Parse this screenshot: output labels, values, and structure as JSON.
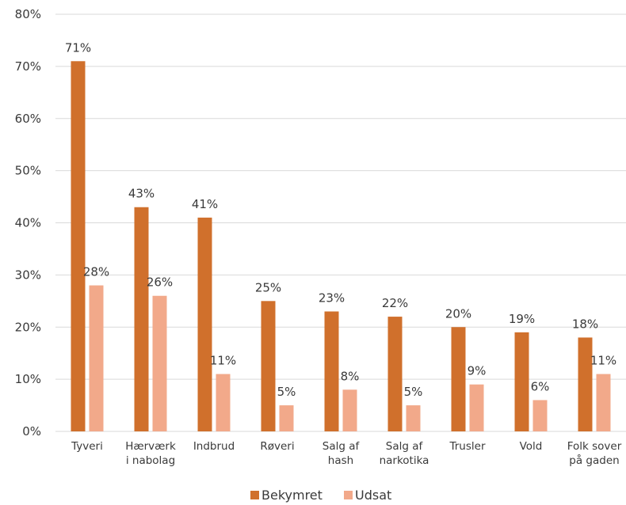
{
  "chart_data": {
    "type": "bar",
    "categories": [
      [
        "Tyveri"
      ],
      [
        "Hærværk",
        "i nabolag"
      ],
      [
        "Indbrud"
      ],
      [
        "Røveri"
      ],
      [
        "Salg af",
        "hash"
      ],
      [
        "Salg af",
        "narkotika"
      ],
      [
        "Trusler"
      ],
      [
        "Vold"
      ],
      [
        "Folk sover",
        "på gaden"
      ]
    ],
    "series": [
      {
        "name": "Bekymret",
        "color": "#D0702C",
        "values": [
          71,
          43,
          41,
          25,
          23,
          22,
          20,
          19,
          18
        ],
        "labels": [
          "71%",
          "43%",
          "41%",
          "25%",
          "23%",
          "22%",
          "20%",
          "19%",
          "18%"
        ]
      },
      {
        "name": "Udsat",
        "color": "#F2A98A",
        "values": [
          28,
          26,
          11,
          5,
          8,
          5,
          9,
          6,
          11
        ],
        "labels": [
          "28%",
          "26%",
          "11%",
          "5%",
          "8%",
          "5%",
          "9%",
          "6%",
          "11%"
        ]
      }
    ],
    "ylim": [
      0,
      80
    ],
    "yticks": [
      "0%",
      "10%",
      "20%",
      "30%",
      "40%",
      "50%",
      "60%",
      "70%",
      "80%"
    ],
    "grid": true,
    "legend_position": "bottom",
    "title": "",
    "xlabel": "",
    "ylabel": ""
  }
}
